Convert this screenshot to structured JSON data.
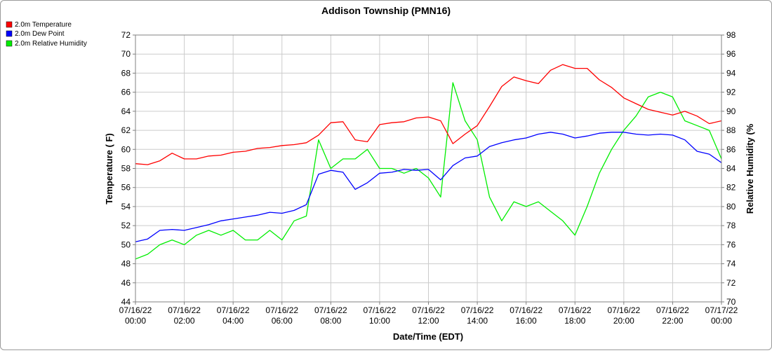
{
  "chart_data": {
    "type": "line",
    "title": "Addison Township (PMN16)",
    "xlabel": "Date/Time (EDT)",
    "ylabel": "Temperature ( F)",
    "y2label": "Relative Humidity (%",
    "ylim": [
      44,
      72
    ],
    "y2lim": [
      70,
      98
    ],
    "grid": true,
    "legend_position": "top-left",
    "x_ticks": [
      {
        "date": "07/16/22",
        "time": "00:00"
      },
      {
        "date": "07/16/22",
        "time": "02:00"
      },
      {
        "date": "07/16/22",
        "time": "04:00"
      },
      {
        "date": "07/16/22",
        "time": "06:00"
      },
      {
        "date": "07/16/22",
        "time": "08:00"
      },
      {
        "date": "07/16/22",
        "time": "10:00"
      },
      {
        "date": "07/16/22",
        "time": "12:00"
      },
      {
        "date": "07/16/22",
        "time": "14:00"
      },
      {
        "date": "07/16/22",
        "time": "16:00"
      },
      {
        "date": "07/16/22",
        "time": "18:00"
      },
      {
        "date": "07/16/22",
        "time": "20:00"
      },
      {
        "date": "07/16/22",
        "time": "22:00"
      },
      {
        "date": "07/17/22",
        "time": "00:00"
      }
    ],
    "y_ticks": [
      "44",
      "46",
      "48",
      "50",
      "52",
      "54",
      "56",
      "58",
      "60",
      "62",
      "64",
      "66",
      "68",
      "70",
      "72"
    ],
    "y2_ticks": [
      "70",
      "72",
      "74",
      "76",
      "78",
      "80",
      "82",
      "84",
      "86",
      "88",
      "90",
      "92",
      "94",
      "96",
      "98"
    ],
    "x": [
      "07/16/22 00:00",
      "07/16/22 00:30",
      "07/16/22 01:00",
      "07/16/22 01:30",
      "07/16/22 02:00",
      "07/16/22 02:30",
      "07/16/22 03:00",
      "07/16/22 03:30",
      "07/16/22 04:00",
      "07/16/22 04:30",
      "07/16/22 05:00",
      "07/16/22 05:30",
      "07/16/22 06:00",
      "07/16/22 06:30",
      "07/16/22 07:00",
      "07/16/22 07:30",
      "07/16/22 08:00",
      "07/16/22 08:30",
      "07/16/22 09:00",
      "07/16/22 09:30",
      "07/16/22 10:00",
      "07/16/22 10:30",
      "07/16/22 11:00",
      "07/16/22 11:30",
      "07/16/22 12:00",
      "07/16/22 12:30",
      "07/16/22 13:00",
      "07/16/22 13:30",
      "07/16/22 14:00",
      "07/16/22 14:30",
      "07/16/22 15:00",
      "07/16/22 15:30",
      "07/16/22 16:00",
      "07/16/22 16:30",
      "07/16/22 17:00",
      "07/16/22 17:30",
      "07/16/22 18:00",
      "07/16/22 18:30",
      "07/16/22 19:00",
      "07/16/22 19:30",
      "07/16/22 20:00",
      "07/16/22 20:30",
      "07/16/22 21:00",
      "07/16/22 21:30",
      "07/16/22 22:00",
      "07/16/22 22:30",
      "07/16/22 23:00",
      "07/16/22 23:30",
      "07/17/22 00:00"
    ],
    "series": [
      {
        "name": "2.0m Temperature",
        "color": "#ff0000",
        "axis": "left",
        "values": [
          58.5,
          58.4,
          58.8,
          59.6,
          59.0,
          59.0,
          59.3,
          59.4,
          59.7,
          59.8,
          60.1,
          60.2,
          60.4,
          60.5,
          60.7,
          61.5,
          62.8,
          62.9,
          61.0,
          60.8,
          62.6,
          62.8,
          62.9,
          63.3,
          63.4,
          63.0,
          60.6,
          61.6,
          62.5,
          64.5,
          66.6,
          67.6,
          67.2,
          66.9,
          68.3,
          68.9,
          68.5,
          68.5,
          67.3,
          66.5,
          65.4,
          64.8,
          64.2,
          63.9,
          63.6,
          64.0,
          63.5,
          62.7,
          63.0
        ]
      },
      {
        "name": "2.0m Dew Point",
        "color": "#0000ff",
        "axis": "left",
        "values": [
          50.3,
          50.6,
          51.5,
          51.6,
          51.5,
          51.8,
          52.1,
          52.5,
          52.7,
          52.9,
          53.1,
          53.4,
          53.3,
          53.6,
          54.2,
          57.4,
          57.8,
          57.6,
          55.8,
          56.5,
          57.5,
          57.6,
          57.9,
          57.8,
          57.9,
          56.8,
          58.3,
          59.1,
          59.3,
          60.3,
          60.7,
          61.0,
          61.2,
          61.6,
          61.8,
          61.6,
          61.2,
          61.4,
          61.7,
          61.8,
          61.8,
          61.6,
          61.5,
          61.6,
          61.5,
          61.0,
          59.8,
          59.5,
          58.6
        ]
      },
      {
        "name": "2.0m Relative Humidity",
        "color": "#00ee00",
        "axis": "right",
        "values": [
          74.5,
          75.0,
          76.0,
          76.5,
          76.0,
          77.0,
          77.5,
          77.0,
          77.5,
          76.5,
          76.5,
          77.5,
          76.5,
          78.5,
          79.0,
          87.0,
          84.0,
          85.0,
          85.0,
          86.0,
          84.0,
          84.0,
          83.5,
          84.0,
          83.0,
          81.0,
          93.0,
          89.0,
          87.0,
          81.0,
          78.5,
          80.5,
          80.0,
          80.5,
          79.5,
          78.5,
          77.0,
          80.0,
          83.5,
          86.0,
          88.0,
          89.5,
          91.5,
          92.0,
          91.5,
          89.0,
          88.5,
          88.0,
          85.0
        ]
      }
    ]
  }
}
